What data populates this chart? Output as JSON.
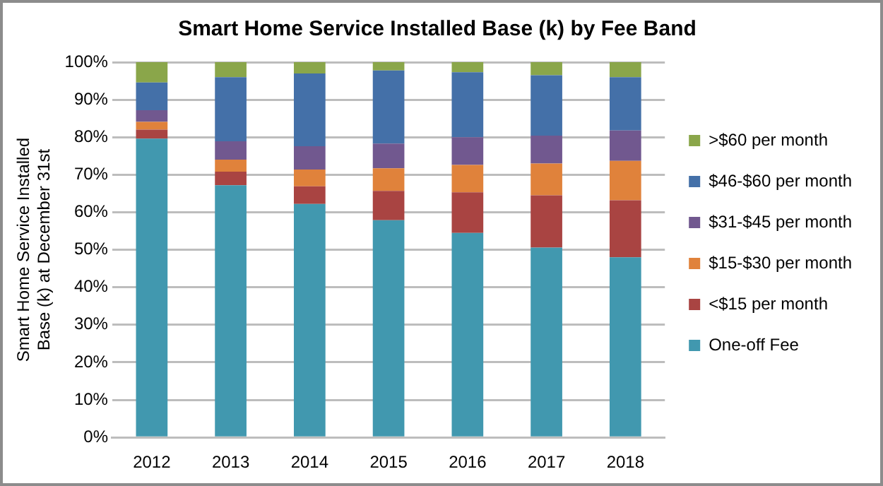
{
  "chart_data": {
    "type": "bar",
    "title": "Smart Home Service Installed Base (k) by Fee Band",
    "ylabel": "Smart Home Service Installed Base (k) at December 31st",
    "categories": [
      "2012",
      "2013",
      "2014",
      "2015",
      "2016",
      "2017",
      "2018"
    ],
    "stacked": true,
    "series": [
      {
        "name": "One-off Fee",
        "color": "#4198af",
        "values": [
          79.6,
          67.2,
          62.2,
          57.9,
          54.5,
          50.6,
          48.0
        ]
      },
      {
        "name": "<$15 per month",
        "color": "#a94442",
        "values": [
          2.4,
          3.6,
          4.7,
          7.8,
          10.8,
          13.9,
          15.2
        ]
      },
      {
        "name": "$15-$30 per month",
        "color": "#e0823b",
        "values": [
          2.1,
          3.2,
          4.5,
          6.0,
          7.3,
          8.5,
          10.5
        ]
      },
      {
        "name": "$31-$45 per month",
        "color": "#71588f",
        "values": [
          3.1,
          4.9,
          6.2,
          6.6,
          7.4,
          7.4,
          8.1
        ]
      },
      {
        "name": "$46-$60 per month",
        "color": "#4470a8",
        "values": [
          7.4,
          17.1,
          19.4,
          19.5,
          17.3,
          16.1,
          14.2
        ]
      },
      {
        "name": ">$60 per month",
        "color": "#8aa64a",
        "values": [
          5.4,
          4.0,
          3.0,
          2.2,
          2.7,
          3.5,
          4.0
        ]
      }
    ],
    "ylim": [
      0,
      100
    ],
    "yticks": [
      {
        "value": 0,
        "label": "0%"
      },
      {
        "value": 10,
        "label": "10%"
      },
      {
        "value": 20,
        "label": "20%"
      },
      {
        "value": 30,
        "label": "30%"
      },
      {
        "value": 40,
        "label": "40%"
      },
      {
        "value": 50,
        "label": "50%"
      },
      {
        "value": 60,
        "label": "60%"
      },
      {
        "value": 70,
        "label": "70%"
      },
      {
        "value": 80,
        "label": "80%"
      },
      {
        "value": 90,
        "label": "90%"
      },
      {
        "value": 100,
        "label": "100%"
      }
    ],
    "grid": "y",
    "legend": "right"
  }
}
